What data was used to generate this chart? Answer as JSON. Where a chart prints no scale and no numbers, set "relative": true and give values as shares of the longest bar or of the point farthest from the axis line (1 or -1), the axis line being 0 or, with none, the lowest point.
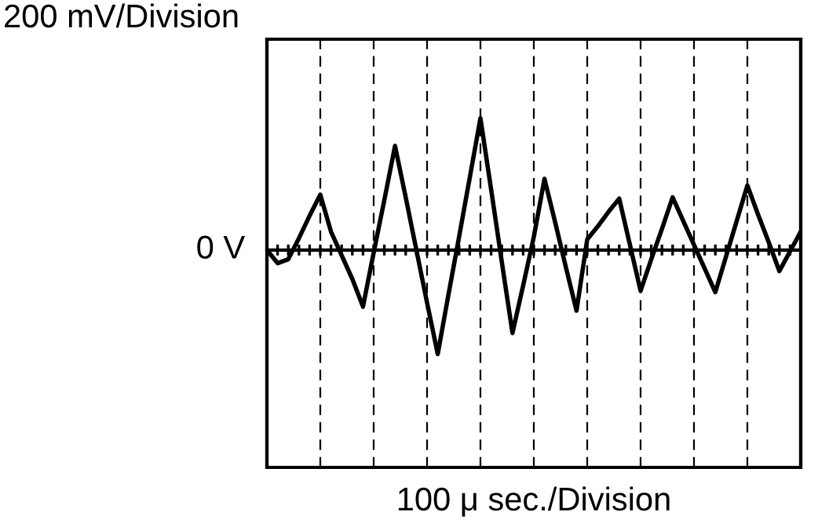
{
  "chart_data": {
    "type": "line",
    "relative": true,
    "ylabel": "200 mV/Division",
    "xlabel": "100 μ sec./Division",
    "categories": [
      null,
      null,
      null,
      null,
      null,
      null,
      null,
      null,
      null,
      null,
      null,
      null,
      null,
      null,
      null,
      null,
      null,
      null,
      null,
      null,
      null,
      null,
      null,
      null,
      null,
      null,
      null,
      null,
      null,
      null,
      null,
      null,
      null,
      null,
      null,
      null,
      null,
      null,
      null,
      null,
      null,
      null,
      null,
      null,
      null,
      null,
      null,
      null,
      null,
      null,
      null
    ],
    "series": [
      {
        "color": "#000000",
        "values": [
          0,
          -0.1,
          -0.07,
          0.09,
          0.26,
          0.42,
          0.14,
          -0.04,
          -0.22,
          -0.43,
          -0.02,
          0.38,
          0.79,
          0.4,
          0.0,
          -0.4,
          -0.79,
          -0.34,
          0.1,
          0.55,
          1,
          0.46,
          -0.09,
          -0.63,
          -0.27,
          0.1,
          0.54,
          0.21,
          -0.13,
          -0.46,
          0.08,
          0.18,
          0.29,
          0.39,
          0.04,
          -0.31,
          -0.07,
          0.16,
          0.4,
          0.22,
          0.04,
          -0.14,
          -0.32,
          -0.05,
          0.22,
          0.49,
          0.27,
          0.06,
          -0.16,
          -0.01,
          0.14
        ]
      }
    ],
    "annotations": [
      "0 V"
    ],
    "grid": "x",
    "marker": "none",
    "line_style": "solid"
  }
}
